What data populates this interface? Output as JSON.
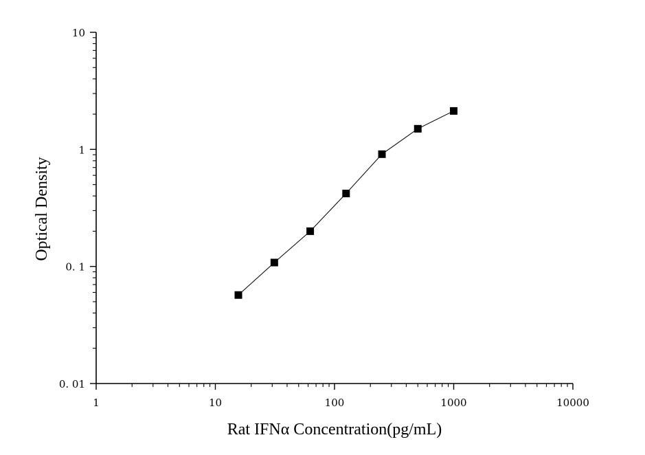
{
  "chart_data": {
    "type": "scatter",
    "title": "",
    "xlabel": "Rat IFNα Concentration(pg/mL)",
    "ylabel": "Optical Density",
    "xscale": "log",
    "yscale": "log",
    "xlim": [
      1,
      10000
    ],
    "ylim": [
      0.01,
      10
    ],
    "x_ticks": [
      1,
      10,
      100,
      1000,
      10000
    ],
    "x_tick_labels": [
      "1",
      "10",
      "100",
      "1000",
      "10000"
    ],
    "y_ticks": [
      0.01,
      0.1,
      1,
      10
    ],
    "y_tick_labels": [
      "0. 01",
      "0. 1",
      "1",
      "10"
    ],
    "grid": false,
    "legend": "none",
    "series": [
      {
        "marker": "square",
        "connected": true,
        "color": "#000000",
        "x": [
          15.6,
          31.25,
          62.5,
          125,
          250,
          500,
          1000
        ],
        "y": [
          0.057,
          0.108,
          0.2,
          0.42,
          0.91,
          1.5,
          2.13
        ]
      }
    ]
  }
}
